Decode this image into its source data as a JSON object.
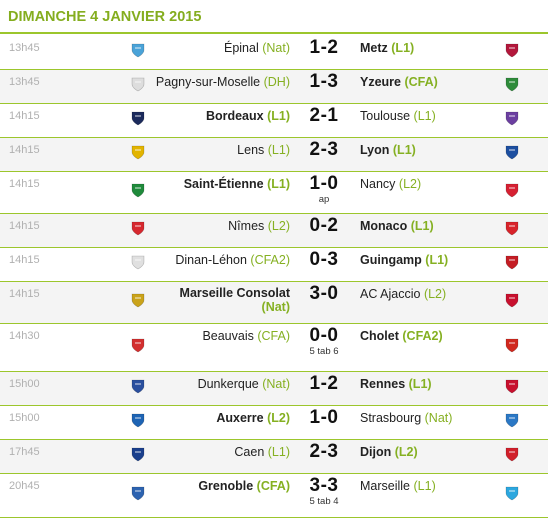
{
  "header": {
    "date": "DIMANCHE 4 JANVIER 2015",
    "accent": "#84ad1e"
  },
  "matches": [
    {
      "time": "13h45",
      "home": "Épinal",
      "home_level": "(Nat)",
      "away": "Metz",
      "away_level": "(L1)",
      "score": "1-2",
      "winner": "away",
      "home_crest": "epinal-crest-icon",
      "away_crest": "metz-crest-icon"
    },
    {
      "time": "13h45",
      "home": "Pagny-sur-Moselle",
      "home_level": "(DH)",
      "away": "Yzeure",
      "away_level": "(CFA)",
      "score": "1-3",
      "winner": "away",
      "home_crest": "pagny-crest-icon",
      "away_crest": "yzeure-crest-icon"
    },
    {
      "time": "14h15",
      "home": "Bordeaux",
      "home_level": "(L1)",
      "away": "Toulouse",
      "away_level": "(L1)",
      "score": "2-1",
      "winner": "home",
      "home_crest": "bordeaux-crest-icon",
      "away_crest": "toulouse-crest-icon"
    },
    {
      "time": "14h15",
      "home": "Lens",
      "home_level": "(L1)",
      "away": "Lyon",
      "away_level": "(L1)",
      "score": "2-3",
      "winner": "away",
      "home_crest": "lens-crest-icon",
      "away_crest": "lyon-crest-icon"
    },
    {
      "time": "14h15",
      "home": "Saint-Étienne",
      "home_level": "(L1)",
      "away": "Nancy",
      "away_level": "(L2)",
      "score": "1-0",
      "note": "ap",
      "winner": "home",
      "home_crest": "saint-etienne-crest-icon",
      "away_crest": "nancy-crest-icon"
    },
    {
      "time": "14h15",
      "home": "Nîmes",
      "home_level": "(L2)",
      "away": "Monaco",
      "away_level": "(L1)",
      "score": "0-2",
      "winner": "away",
      "home_crest": "nimes-crest-icon",
      "away_crest": "monaco-crest-icon"
    },
    {
      "time": "14h15",
      "home": "Dinan-Léhon",
      "home_level": "(CFA2)",
      "away": "Guingamp",
      "away_level": "(L1)",
      "score": "0-3",
      "winner": "away",
      "home_crest": "dinan-crest-icon",
      "away_crest": "guingamp-crest-icon"
    },
    {
      "time": "14h15",
      "home": "Marseille Consolat",
      "home_level": "(Nat)",
      "away": "AC Ajaccio",
      "away_level": "(L2)",
      "score": "3-0",
      "winner": "home",
      "home_crest": "consolat-crest-icon",
      "away_crest": "ajaccio-crest-icon"
    },
    {
      "time": "14h30",
      "home": "Beauvais",
      "home_level": "(CFA)",
      "away": "Cholet",
      "away_level": "(CFA2)",
      "score": "0-0",
      "note": "5 tab 6",
      "winner": "away",
      "home_crest": "beauvais-crest-icon",
      "away_crest": "cholet-crest-icon"
    },
    {
      "time": "15h00",
      "home": "Dunkerque",
      "home_level": "(Nat)",
      "away": "Rennes",
      "away_level": "(L1)",
      "score": "1-2",
      "winner": "away",
      "home_crest": "dunkerque-crest-icon",
      "away_crest": "rennes-crest-icon"
    },
    {
      "time": "15h00",
      "home": "Auxerre",
      "home_level": "(L2)",
      "away": "Strasbourg",
      "away_level": "(Nat)",
      "score": "1-0",
      "winner": "home",
      "home_crest": "auxerre-crest-icon",
      "away_crest": "strasbourg-crest-icon"
    },
    {
      "time": "17h45",
      "home": "Caen",
      "home_level": "(L1)",
      "away": "Dijon",
      "away_level": "(L2)",
      "score": "2-3",
      "winner": "away",
      "home_crest": "caen-crest-icon",
      "away_crest": "dijon-crest-icon"
    },
    {
      "time": "20h45",
      "home": "Grenoble",
      "home_level": "(CFA)",
      "away": "Marseille",
      "away_level": "(L1)",
      "score": "3-3",
      "note": "5 tab 4",
      "winner": "home",
      "home_crest": "grenoble-crest-icon",
      "away_crest": "marseille-crest-icon"
    }
  ]
}
